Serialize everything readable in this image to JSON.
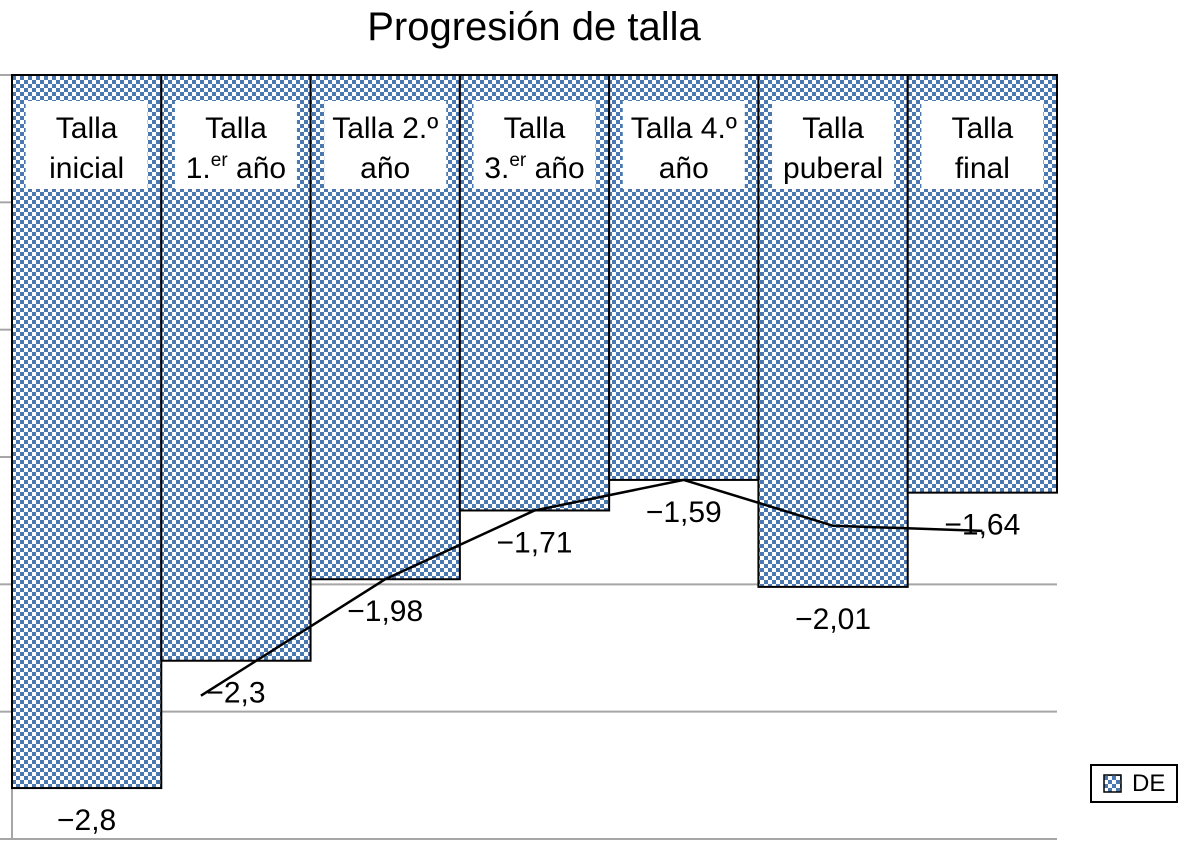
{
  "chart_data": {
    "type": "bar",
    "title": "Progresión de talla",
    "categories": [
      {
        "main": "Talla",
        "sub": "inicial",
        "sup": ""
      },
      {
        "main": "Talla",
        "sub": "1.",
        "sup": "er",
        "tail": " año"
      },
      {
        "main": "Talla 2.º",
        "sub": "año",
        "sup": ""
      },
      {
        "main": "Talla",
        "sub": "3.",
        "sup": "er",
        "tail": " año"
      },
      {
        "main": "Talla 4.º",
        "sub": "año",
        "sup": ""
      },
      {
        "main": "Talla",
        "sub": "puberal",
        "sup": ""
      },
      {
        "main": "Talla",
        "sub": "final",
        "sup": ""
      }
    ],
    "series": [
      {
        "name": "DE",
        "values": [
          -2.8,
          -2.3,
          -1.98,
          -1.71,
          -1.59,
          -2.01,
          -1.64
        ]
      }
    ],
    "data_labels": [
      "−2,8",
      "−2,3",
      "−1,98",
      "−1,71",
      "−1,59",
      "−2,01",
      "−1,64"
    ],
    "line_overlay": {
      "values": [
        -2.3,
        -1.98,
        -1.71,
        -1.59,
        -1.77,
        -1.79
      ]
    },
    "ylim": [
      -3,
      0
    ],
    "grid": true,
    "legend": "right",
    "colors": {
      "bar_fill": "#4a78b0",
      "bar_check": "#ffffff",
      "grid": "#a6a6a6",
      "line": "#000000"
    }
  }
}
